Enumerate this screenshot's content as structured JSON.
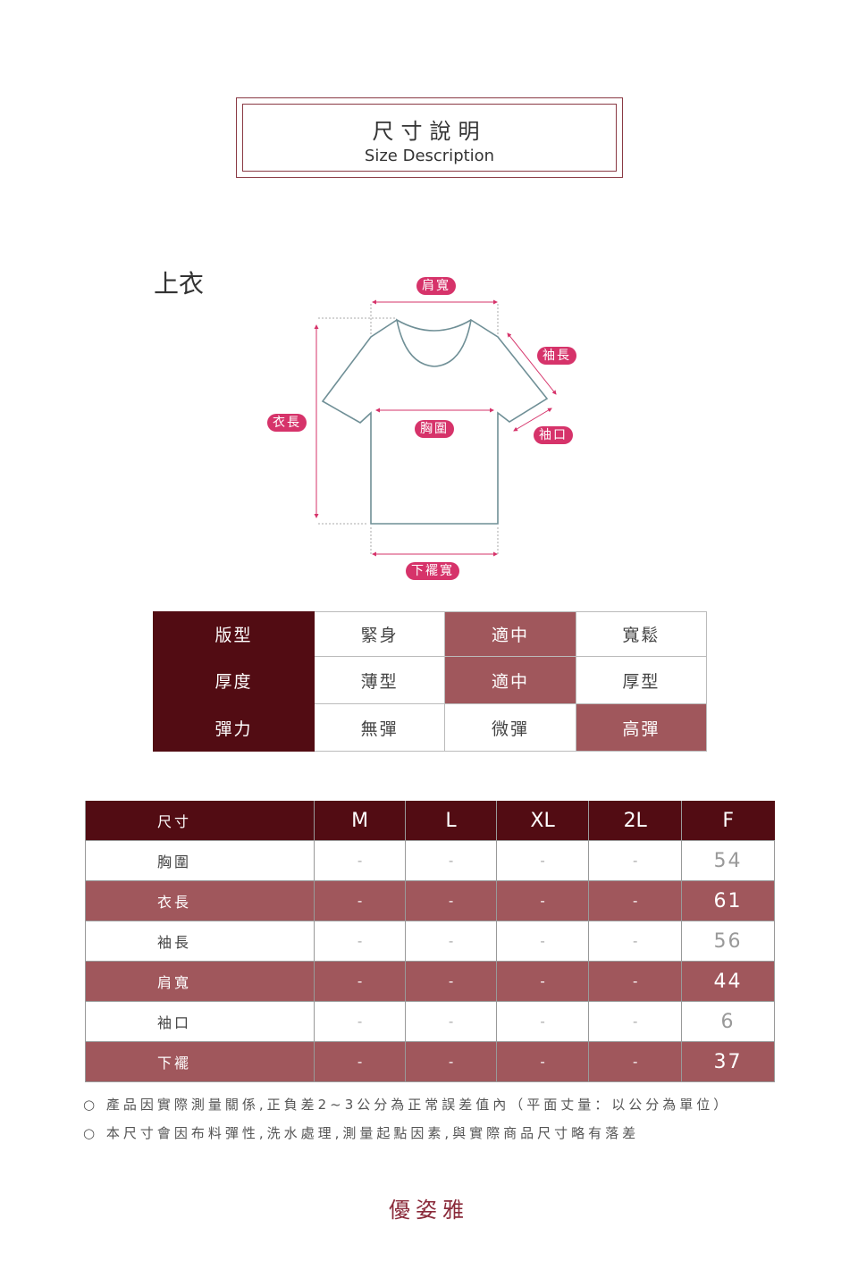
{
  "header": {
    "title_zh": "尺寸說明",
    "title_en": "Size Description"
  },
  "section_title": "上衣",
  "diagram": {
    "labels": {
      "shoulder": "肩寬",
      "sleeve_length": "袖長",
      "length": "衣長",
      "chest": "胸圍",
      "cuff": "袖口",
      "hem": "下襬寬"
    }
  },
  "fit_table": {
    "rows": [
      {
        "label": "版型",
        "options": [
          "緊身",
          "適中",
          "寬鬆"
        ],
        "selected": 1
      },
      {
        "label": "厚度",
        "options": [
          "薄型",
          "適中",
          "厚型"
        ],
        "selected": 1
      },
      {
        "label": "彈力",
        "options": [
          "無彈",
          "微彈",
          "高彈"
        ],
        "selected": 2
      }
    ]
  },
  "size_table": {
    "headers": [
      "尺寸",
      "M",
      "L",
      "XL",
      "2L",
      "F"
    ],
    "rows": [
      {
        "label": "胸圍",
        "values": [
          "-",
          "-",
          "-",
          "-",
          "54"
        ]
      },
      {
        "label": "衣長",
        "values": [
          "-",
          "-",
          "-",
          "-",
          "61"
        ]
      },
      {
        "label": "袖長",
        "values": [
          "-",
          "-",
          "-",
          "-",
          "56"
        ]
      },
      {
        "label": "肩寬",
        "values": [
          "-",
          "-",
          "-",
          "-",
          "44"
        ]
      },
      {
        "label": "袖口",
        "values": [
          "-",
          "-",
          "-",
          "-",
          "6"
        ]
      },
      {
        "label": "下襬",
        "values": [
          "-",
          "-",
          "-",
          "-",
          "37"
        ]
      }
    ]
  },
  "notes": [
    "產品因實際測量關係,正負差2~3公分為正常誤差值內（平面丈量：以公分為單位）",
    "本尺寸會因布料彈性,洗水處理,測量起點因素,與實際商品尺寸略有落差"
  ],
  "brand": "優姿雅",
  "colors": {
    "dark": "#520c13",
    "highlight": "#a0575c",
    "accent": "#d6336a",
    "outline": "#6f8f96"
  }
}
